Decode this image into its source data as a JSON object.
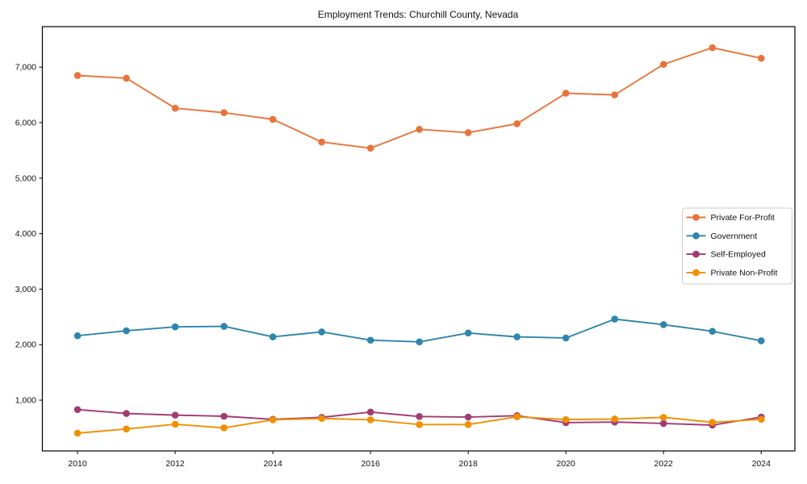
{
  "chart_data": {
    "type": "line",
    "title": "Employment Trends: Churchill County, Nevada",
    "xlabel": "",
    "ylabel": "",
    "x": [
      2010,
      2011,
      2012,
      2013,
      2014,
      2015,
      2016,
      2017,
      2018,
      2019,
      2020,
      2021,
      2022,
      2023,
      2024
    ],
    "x_ticks": [
      2010,
      2012,
      2014,
      2016,
      2018,
      2020,
      2022,
      2024
    ],
    "x_tick_labels": [
      "2010",
      "2012",
      "2014",
      "2016",
      "2018",
      "2020",
      "2022",
      "2024"
    ],
    "y_ticks": [
      1000,
      2000,
      3000,
      4000,
      5000,
      6000,
      7000
    ],
    "y_tick_labels": [
      "1,000",
      "2,000",
      "3,000",
      "4,000",
      "5,000",
      "6,000",
      "7,000"
    ],
    "xlim": [
      2009.28,
      2024.69
    ],
    "ylim": [
      85,
      7730
    ],
    "grid": false,
    "legend_position": "right",
    "series": [
      {
        "name": "Private For-Profit",
        "color": "#E8743B",
        "values": [
          6850,
          6800,
          6260,
          6180,
          6060,
          5650,
          5540,
          5880,
          5820,
          5980,
          6530,
          6500,
          7050,
          7350,
          7160
        ]
      },
      {
        "name": "Government",
        "color": "#2E86AB",
        "values": [
          2160,
          2250,
          2320,
          2330,
          2140,
          2230,
          2080,
          2050,
          2210,
          2140,
          2120,
          2460,
          2360,
          2240,
          2070
        ]
      },
      {
        "name": "Self-Employed",
        "color": "#A23B72",
        "values": [
          830,
          760,
          730,
          710,
          655,
          690,
          785,
          705,
          695,
          720,
          595,
          605,
          580,
          550,
          695
        ]
      },
      {
        "name": "Private Non-Profit",
        "color": "#F18F01",
        "values": [
          405,
          480,
          565,
          500,
          645,
          670,
          645,
          560,
          560,
          700,
          650,
          660,
          690,
          600,
          655
        ]
      }
    ]
  }
}
